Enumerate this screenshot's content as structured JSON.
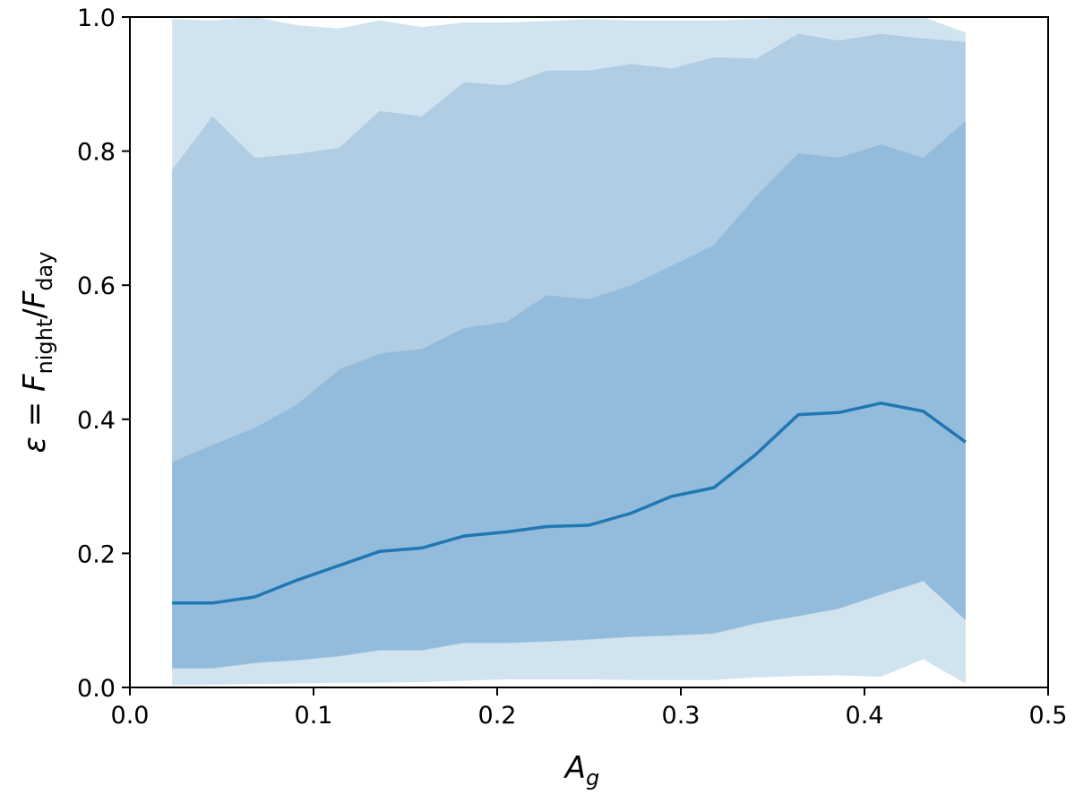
{
  "chart_data": {
    "type": "area",
    "xlabel": "A",
    "xlabel_sub": "g",
    "ylabel": {
      "lhs": "ε",
      "eq": " = ",
      "num": "F",
      "num_sub": "night",
      "slash": "/",
      "den": "F",
      "den_sub": "day"
    },
    "xlim": [
      0.0,
      0.5
    ],
    "ylim": [
      0.0,
      1.0
    ],
    "xticks": [
      "0.0",
      "0.1",
      "0.2",
      "0.3",
      "0.4",
      "0.5"
    ],
    "yticks": [
      "0.0",
      "0.2",
      "0.4",
      "0.6",
      "0.8",
      "1.0"
    ],
    "grid": false,
    "colors": {
      "band_outer": "#d2e3f0",
      "band_middle": "#b0cde3",
      "band_inner": "#93bbdb",
      "median_line": "#1f77b4"
    },
    "x": [
      0.023,
      0.045,
      0.068,
      0.091,
      0.114,
      0.136,
      0.159,
      0.182,
      0.205,
      0.227,
      0.25,
      0.273,
      0.295,
      0.318,
      0.341,
      0.364,
      0.386,
      0.409,
      0.432,
      0.455
    ],
    "median": [
      0.126,
      0.126,
      0.135,
      0.16,
      0.182,
      0.203,
      0.208,
      0.226,
      0.232,
      0.24,
      0.242,
      0.26,
      0.285,
      0.298,
      0.348,
      0.407,
      0.41,
      0.424,
      0.412,
      0.366
    ],
    "bands": [
      {
        "level": "outer",
        "lower": [
          0.003,
          0.004,
          0.005,
          0.006,
          0.007,
          0.007,
          0.008,
          0.01,
          0.012,
          0.012,
          0.012,
          0.011,
          0.011,
          0.011,
          0.015,
          0.017,
          0.018,
          0.016,
          0.042,
          0.006
        ],
        "upper": [
          0.997,
          0.995,
          1.0,
          0.988,
          0.983,
          0.995,
          0.985,
          0.992,
          0.992,
          0.994,
          0.997,
          0.995,
          0.995,
          0.995,
          0.997,
          1.0,
          1.0,
          1.0,
          1.0,
          0.977
        ]
      },
      {
        "level": "middle",
        "lower": [
          0.028,
          0.028,
          0.036,
          0.04,
          0.046,
          0.055,
          0.055,
          0.066,
          0.066,
          0.068,
          0.071,
          0.075,
          0.077,
          0.08,
          0.095,
          0.106,
          0.117,
          0.138,
          0.158,
          0.1
        ],
        "upper": [
          0.772,
          0.852,
          0.79,
          0.796,
          0.805,
          0.86,
          0.852,
          0.903,
          0.898,
          0.92,
          0.92,
          0.93,
          0.923,
          0.94,
          0.938,
          0.975,
          0.965,
          0.975,
          0.968,
          0.963
        ]
      },
      {
        "level": "inner",
        "lower": [
          0.126,
          0.126,
          0.135,
          0.16,
          0.182,
          0.203,
          0.208,
          0.226,
          0.232,
          0.24,
          0.242,
          0.26,
          0.285,
          0.298,
          0.348,
          0.407,
          0.41,
          0.424,
          0.412,
          0.366
        ],
        "upper": [
          0.126,
          0.126,
          0.135,
          0.16,
          0.182,
          0.203,
          0.208,
          0.226,
          0.232,
          0.24,
          0.242,
          0.26,
          0.285,
          0.298,
          0.348,
          0.407,
          0.41,
          0.424,
          0.412,
          0.366
        ],
        "lower_edge": [
          0.029,
          0.029,
          0.037,
          0.041,
          0.047,
          0.056,
          0.056,
          0.067,
          0.067,
          0.069,
          0.072,
          0.076,
          0.078,
          0.081,
          0.096,
          0.107,
          0.118,
          0.139,
          0.159,
          0.101
        ],
        "upper_edge": [
          0.336,
          0.362,
          0.387,
          0.422,
          0.474,
          0.498,
          0.505,
          0.536,
          0.545,
          0.585,
          0.579,
          0.6,
          0.629,
          0.66,
          0.733,
          0.797,
          0.79,
          0.81,
          0.79,
          0.845
        ]
      }
    ]
  }
}
